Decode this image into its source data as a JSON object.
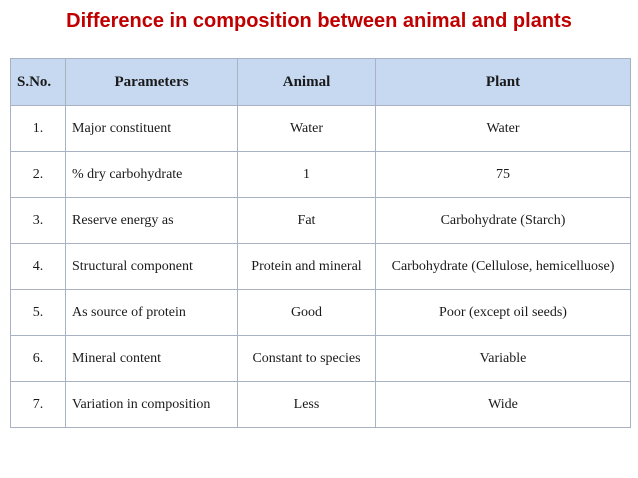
{
  "title": "Difference in composition between animal and plants",
  "table": {
    "headers": {
      "sno": "S.No.",
      "parameters": "Parameters",
      "animal": "Animal",
      "plant": "Plant"
    },
    "rows": [
      {
        "sno": "1.",
        "parameter": "Major constituent",
        "animal": "Water",
        "plant": "Water"
      },
      {
        "sno": "2.",
        "parameter": "% dry carbohydrate",
        "animal": "1",
        "plant": "75"
      },
      {
        "sno": "3.",
        "parameter": "Reserve energy as",
        "animal": "Fat",
        "plant": "Carbohydrate (Starch)"
      },
      {
        "sno": "4.",
        "parameter": "Structural component",
        "animal": "Protein and mineral",
        "plant": "Carbohydrate (Cellulose, hemicelluose)"
      },
      {
        "sno": "5.",
        "parameter": "As source of protein",
        "animal": "Good",
        "plant": "Poor (except oil seeds)"
      },
      {
        "sno": "6.",
        "parameter": "Mineral content",
        "animal": "Constant to species",
        "plant": "Variable"
      },
      {
        "sno": "7.",
        "parameter": "Variation in composition",
        "animal": "Less",
        "plant": "Wide"
      }
    ]
  }
}
